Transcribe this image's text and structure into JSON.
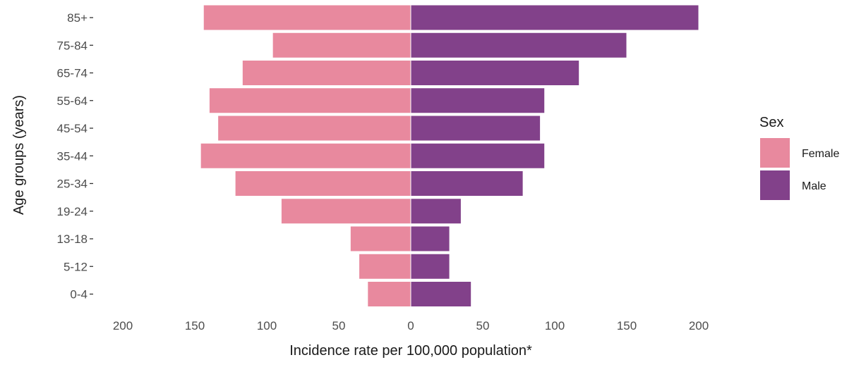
{
  "chart_data": {
    "type": "bar",
    "orientation": "horizontal",
    "layout": "population-pyramid",
    "xlabel": "Incidence rate per 100,000 population*",
    "ylabel": "Age groups (years)",
    "xlim": [
      -200,
      200
    ],
    "x_ticks": [
      -200,
      -150,
      -100,
      -50,
      0,
      50,
      100,
      150,
      200
    ],
    "x_tick_labels": [
      "200",
      "150",
      "100",
      "50",
      "0",
      "50",
      "100",
      "150",
      "200"
    ],
    "grid": false,
    "categories": [
      "0-4",
      "5-12",
      "13-18",
      "19-24",
      "25-34",
      "35-44",
      "45-54",
      "55-64",
      "65-74",
      "75-84",
      "85+"
    ],
    "series": [
      {
        "name": "Female",
        "color": "#E8899E",
        "values": [
          -30,
          -36,
          -42,
          -90,
          -122,
          -146,
          -134,
          -140,
          -117,
          -96,
          -144
        ]
      },
      {
        "name": "Male",
        "color": "#82418A",
        "values": [
          42,
          27,
          27,
          35,
          78,
          93,
          90,
          93,
          117,
          150,
          200
        ]
      }
    ],
    "legend": {
      "title": "Sex",
      "position": "right",
      "entries": [
        "Female",
        "Male"
      ]
    }
  }
}
